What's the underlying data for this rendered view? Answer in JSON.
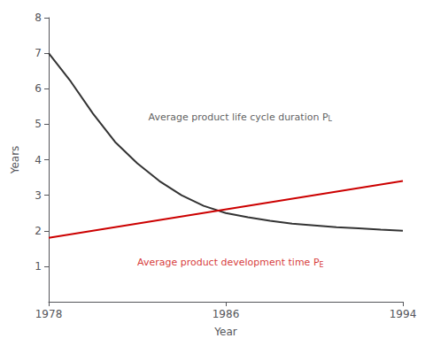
{
  "chart_data": {
    "type": "line",
    "xlabel": "Year",
    "ylabel": "Years",
    "xlim": [
      1978,
      1994
    ],
    "ylim": [
      0,
      8
    ],
    "xticks": [
      1978,
      1986,
      1994
    ],
    "yticks": [
      1,
      2,
      3,
      4,
      5,
      6,
      7,
      8
    ],
    "grid": false,
    "series": [
      {
        "x": [
          1978,
          1979,
          1980,
          1981,
          1982,
          1983,
          1984,
          1985,
          1986,
          1987,
          1988,
          1989,
          1990,
          1991,
          1992,
          1993,
          1994
        ],
        "values": [
          7.0,
          6.2,
          5.3,
          4.5,
          3.9,
          3.4,
          3.0,
          2.7,
          2.5,
          2.38,
          2.28,
          2.2,
          2.15,
          2.1,
          2.07,
          2.03,
          2.0
        ],
        "color": "#333333"
      },
      {
        "x": [
          1978,
          1994
        ],
        "values": [
          1.8,
          3.4
        ],
        "color": "#cc0000"
      }
    ],
    "annotations": [
      {
        "text": "Average product life cycle duration P",
        "sub": "L",
        "x": 1982.5,
        "y": 5.2,
        "color": "#333333"
      },
      {
        "text": "Average product development time P",
        "sub": "E",
        "x": 1982.0,
        "y": 1.1,
        "color": "#cc0000"
      }
    ]
  }
}
